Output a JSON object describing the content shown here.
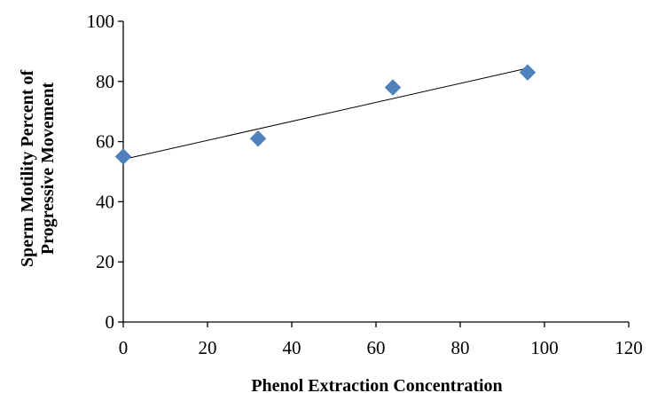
{
  "chart_data": {
    "type": "scatter",
    "title": "",
    "xlabel": "Phenol Extraction Concentration",
    "ylabel_lines": [
      "Sperm Motility Percent of",
      "Progressive Movement"
    ],
    "xlim": [
      0,
      120
    ],
    "ylim": [
      0,
      100
    ],
    "x_ticks": [
      0,
      20,
      40,
      60,
      80,
      100,
      120
    ],
    "y_ticks": [
      0,
      20,
      40,
      60,
      80,
      100
    ],
    "grid": false,
    "legend": "none",
    "marker": "diamond",
    "colors": {
      "marker": "#4f81bd",
      "trendline": "#000000",
      "axis": "#000000"
    },
    "series": [
      {
        "points": [
          {
            "x": 0,
            "y": 55
          },
          {
            "x": 32,
            "y": 61
          },
          {
            "x": 64,
            "y": 78
          },
          {
            "x": 96,
            "y": 83
          }
        ]
      }
    ],
    "trendline": {
      "type": "linear",
      "x_range": [
        0,
        96
      ]
    }
  }
}
